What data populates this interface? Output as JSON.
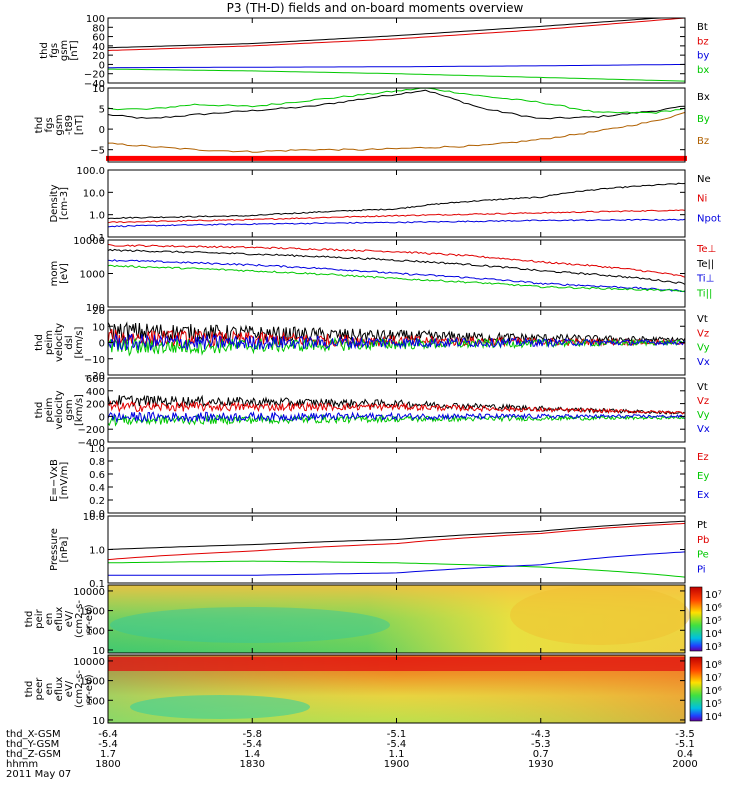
{
  "title": "P3 (TH-D) fields and on-board moments overview",
  "colorbar_labels": {
    "ion": [
      "10⁷",
      "10⁶",
      "10⁵",
      "10⁴",
      "10³"
    ],
    "electron": [
      "10⁸",
      "10⁷",
      "10⁶",
      "10⁵",
      "10⁴"
    ]
  },
  "ephemeris": {
    "rows": [
      {
        "label": "thd_X-GSM",
        "values": [
          "-6.4",
          "-5.8",
          "-5.1",
          "-4.3",
          "-3.5"
        ]
      },
      {
        "label": "thd_Y-GSM",
        "values": [
          "-5.4",
          "-5.4",
          "-5.4",
          "-5.3",
          "-5.1"
        ]
      },
      {
        "label": "thd_Z-GSM",
        "values": [
          "1.7",
          "1.4",
          "1.1",
          "0.7",
          "0.4"
        ]
      },
      {
        "label": "hhmm",
        "values": [
          "1800",
          "1830",
          "1900",
          "1930",
          "2000"
        ]
      }
    ],
    "date": "2011 May 07"
  },
  "chart_data": [
    {
      "type": "line",
      "id": "fgs",
      "ylabel": [
        "thd",
        "fgs",
        "gsm",
        "[nT]"
      ],
      "ylim": [
        -40,
        100
      ],
      "yscale": "linear",
      "yticks": [
        "100",
        "80",
        "60",
        "40",
        "20",
        "0",
        "−20",
        "−40"
      ],
      "ytick_values": [
        100,
        80,
        60,
        40,
        20,
        0,
        -20,
        -40
      ],
      "x": [
        0,
        0.25,
        0.5,
        0.75,
        1
      ],
      "series": [
        {
          "name": "Bt",
          "color": "#000000",
          "values": [
            36,
            45,
            62,
            82,
            104
          ]
        },
        {
          "name": "bz",
          "color": "#e00000",
          "values": [
            30,
            40,
            55,
            75,
            100
          ]
        },
        {
          "name": "by",
          "color": "#0000e0",
          "values": [
            -7,
            -6,
            -5,
            -3,
            0
          ]
        },
        {
          "name": "bx",
          "color": "#00c800",
          "values": [
            -10,
            -14,
            -20,
            -28,
            -36
          ]
        }
      ]
    },
    {
      "type": "line",
      "id": "fgs_t89",
      "ylabel": [
        "thd",
        "fgs",
        "gsm",
        "-t89",
        "[nT]"
      ],
      "ylim": [
        -8,
        10
      ],
      "yscale": "linear",
      "yticks": [
        "10",
        "5",
        "0",
        "−5"
      ],
      "ytick_values": [
        10,
        5,
        0,
        -5
      ],
      "x": [
        0,
        0.07,
        0.15,
        0.25,
        0.35,
        0.45,
        0.55,
        0.65,
        0.75,
        0.85,
        0.95,
        1
      ],
      "series": [
        {
          "name": "Bx",
          "color": "#000000",
          "values": [
            3.5,
            2.5,
            3.5,
            4.5,
            5.5,
            7.5,
            9.5,
            5,
            2.5,
            3,
            4.5,
            5.5
          ]
        },
        {
          "name": "By",
          "color": "#00c800",
          "values": [
            5,
            4.8,
            6,
            5.5,
            7,
            8.5,
            10,
            8,
            6.5,
            4,
            4,
            5
          ]
        },
        {
          "name": "Bz",
          "color": "#b06000",
          "values": [
            -3.5,
            -4.2,
            -5,
            -5.5,
            -5,
            -5,
            -4.5,
            -4,
            -2.5,
            -0.5,
            2,
            4
          ]
        }
      ],
      "bar_value": -7
    },
    {
      "type": "line",
      "id": "density",
      "ylabel": [
        "Density",
        "[cm-3]"
      ],
      "ylim": [
        0.1,
        100
      ],
      "yscale": "log",
      "yticks": [
        "100.0",
        "10.0",
        "1.0",
        "0.1"
      ],
      "ytick_values": [
        100,
        10,
        1,
        0.1
      ],
      "x": [
        0,
        0.25,
        0.5,
        0.75,
        1
      ],
      "series": [
        {
          "name": "Ne",
          "color": "#000000",
          "values": [
            0.7,
            0.9,
            1.8,
            6,
            25
          ]
        },
        {
          "name": "Ni",
          "color": "#e00000",
          "values": [
            0.45,
            0.6,
            0.9,
            1.2,
            1.6
          ]
        },
        {
          "name": "Npot",
          "color": "#0000e0",
          "values": [
            0.3,
            0.38,
            0.45,
            0.55,
            0.6
          ]
        }
      ]
    },
    {
      "type": "line",
      "id": "temperature",
      "ylabel": [
        "mom",
        "[eV]"
      ],
      "ylim": [
        100,
        10000
      ],
      "yscale": "log",
      "yticks": [
        "10000",
        "1000",
        "100"
      ],
      "ytick_values": [
        10000,
        1000,
        100
      ],
      "x": [
        0,
        0.25,
        0.5,
        0.75,
        1
      ],
      "series": [
        {
          "name": "Te⊥",
          "color": "#e00000",
          "values": [
            7000,
            6000,
            4500,
            2200,
            800
          ]
        },
        {
          "name": "Te||",
          "color": "#000000",
          "values": [
            5000,
            3800,
            2500,
            1200,
            500
          ]
        },
        {
          "name": "Ti⊥",
          "color": "#0000e0",
          "values": [
            2500,
            1800,
            1000,
            500,
            300
          ]
        },
        {
          "name": "Ti||",
          "color": "#00c800",
          "values": [
            1700,
            1200,
            700,
            400,
            300
          ]
        }
      ]
    },
    {
      "type": "line",
      "id": "velocity_dsl",
      "ylabel": [
        "thd",
        "peim",
        "velocity",
        "dsl",
        "[km/s]"
      ],
      "ylim": [
        -20,
        20
      ],
      "yscale": "linear",
      "yticks": [
        "20",
        "10",
        "0",
        "−10",
        "−20"
      ],
      "ytick_values": [
        20,
        10,
        0,
        -10,
        -20
      ],
      "x": [
        0,
        0.5,
        1
      ],
      "series": [
        {
          "name": "Vt",
          "color": "#000000",
          "values": [
            7,
            4,
            1.5
          ]
        },
        {
          "name": "Vz",
          "color": "#e00000",
          "values": [
            3,
            1,
            0
          ]
        },
        {
          "name": "Vy",
          "color": "#00c800",
          "values": [
            -3,
            -1,
            0
          ]
        },
        {
          "name": "Vx",
          "color": "#0000e0",
          "values": [
            0,
            0,
            0
          ]
        }
      ]
    },
    {
      "type": "line",
      "id": "velocity_gsm",
      "ylabel": [
        "thd",
        "peim",
        "velocity",
        "gsm",
        "[km/s]"
      ],
      "ylim": [
        -400,
        600
      ],
      "yscale": "linear",
      "yticks": [
        "600",
        "400",
        "200",
        "0",
        "−200",
        "−400"
      ],
      "ytick_values": [
        600,
        400,
        200,
        0,
        -200,
        -400
      ],
      "x": [
        0,
        0.5,
        1
      ],
      "series": [
        {
          "name": "Vt",
          "color": "#000000",
          "values": [
            250,
            200,
            50
          ]
        },
        {
          "name": "Vz",
          "color": "#e00000",
          "values": [
            150,
            150,
            60
          ]
        },
        {
          "name": "Vy",
          "color": "#00c800",
          "values": [
            -60,
            -40,
            -20
          ]
        },
        {
          "name": "Vx",
          "color": "#0000e0",
          "values": [
            -10,
            0,
            0
          ]
        }
      ]
    },
    {
      "type": "line",
      "id": "efield",
      "ylabel": [
        "E=−VxB",
        "[mV/m]"
      ],
      "ylim": [
        0,
        1
      ],
      "yscale": "linear",
      "yticks": [
        "1.0",
        "0.8",
        "0.6",
        "0.4",
        "0.2",
        "0.0"
      ],
      "ytick_values": [
        1,
        0.8,
        0.6,
        0.4,
        0.2,
        0
      ],
      "series": [
        {
          "name": "Ez",
          "color": "#e00000",
          "values": []
        },
        {
          "name": "Ey",
          "color": "#00c800",
          "values": []
        },
        {
          "name": "Ex",
          "color": "#0000e0",
          "values": []
        }
      ]
    },
    {
      "type": "line",
      "id": "pressure",
      "ylabel": [
        "Pressure",
        "[nPa]"
      ],
      "ylim": [
        0.1,
        10
      ],
      "yscale": "log",
      "yticks": [
        "10.0",
        "1.0",
        "0.1"
      ],
      "ytick_values": [
        10,
        1,
        0.1
      ],
      "x": [
        0,
        0.25,
        0.5,
        0.75,
        1
      ],
      "series": [
        {
          "name": "Pt",
          "color": "#000000",
          "values": [
            1.0,
            1.4,
            2.0,
            3.5,
            7
          ]
        },
        {
          "name": "Pb",
          "color": "#e00000",
          "values": [
            0.5,
            0.9,
            1.5,
            3,
            6
          ]
        },
        {
          "name": "Pe",
          "color": "#00c800",
          "values": [
            0.4,
            0.45,
            0.4,
            0.3,
            0.15
          ]
        },
        {
          "name": "Pi",
          "color": "#0000e0",
          "values": [
            0.17,
            0.17,
            0.2,
            0.35,
            0.85
          ]
        }
      ]
    },
    {
      "type": "heatmap",
      "id": "ion_eflux",
      "ylabel": [
        "thd",
        "peir",
        "en",
        "eflux",
        "eV/",
        "(cm2-s-",
        "sr-eV)"
      ],
      "yscale": "log",
      "ylim": [
        7,
        20000
      ],
      "yticks": [
        "10000",
        "1000",
        "100",
        "10"
      ],
      "ytick_values": [
        10000,
        1000,
        100,
        10
      ],
      "zlim": [
        1000,
        10000000
      ]
    },
    {
      "type": "heatmap",
      "id": "electron_eflux",
      "ylabel": [
        "thd",
        "peer",
        "en",
        "eflux",
        "eV/",
        "(cm2-s-",
        "sr-eV)"
      ],
      "yscale": "log",
      "ylim": [
        7,
        20000
      ],
      "yticks": [
        "10000",
        "1000",
        "100",
        "10"
      ],
      "ytick_values": [
        10000,
        1000,
        100,
        10
      ],
      "zlim": [
        10000,
        100000000
      ]
    }
  ]
}
